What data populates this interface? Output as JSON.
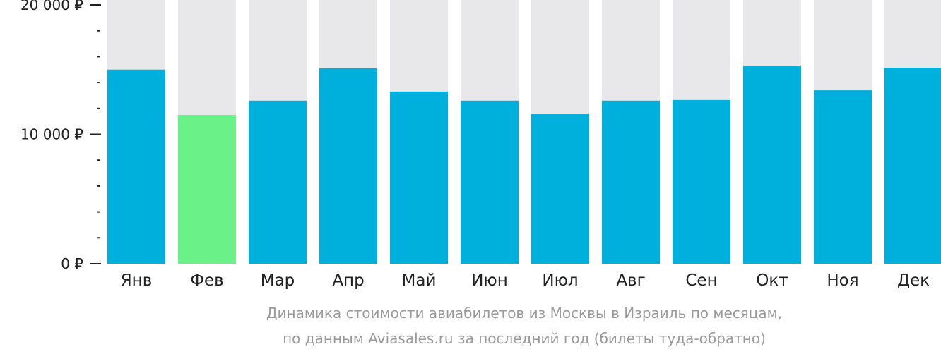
{
  "colors": {
    "bar": "#00b0dc",
    "highlight": "#6af187",
    "track": "#e8e8ea",
    "axis": "#222222"
  },
  "caption": {
    "line1": "Динамика стоимости авиабилетов из Москвы в Израиль по месяцам,",
    "line2": "по данным Aviasales.ru за последний год (билеты туда-обратно)"
  },
  "chart_data": {
    "type": "bar",
    "categories": [
      "Янв",
      "Фев",
      "Мар",
      "Апр",
      "Май",
      "Июн",
      "Июл",
      "Авг",
      "Сен",
      "Окт",
      "Ноя",
      "Дек"
    ],
    "values": [
      15000,
      11500,
      12600,
      15100,
      13300,
      12600,
      11600,
      12600,
      12650,
      15300,
      13400,
      15150
    ],
    "highlight_index": 1,
    "ylim": [
      0,
      20000
    ],
    "major_ticks": [
      0,
      10000,
      20000
    ],
    "ytick_labels": [
      "0 ₽",
      "10 000 ₽",
      "20 000 ₽"
    ],
    "minor_tick_step": 2000,
    "title": "",
    "xlabel": "",
    "ylabel": "",
    "grid": false,
    "legend": "none"
  }
}
